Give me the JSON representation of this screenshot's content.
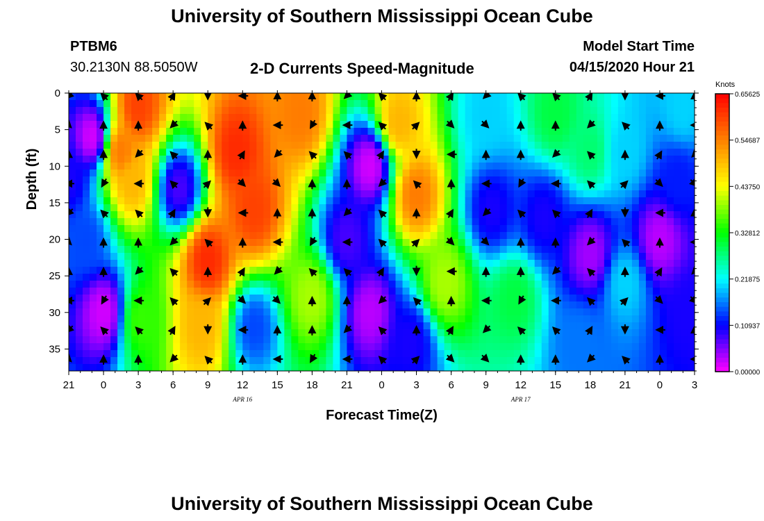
{
  "header": {
    "title": "University of Southern Mississippi Ocean Cube",
    "station_id": "PTBM6",
    "station_coords": "30.2130N 88.5050W",
    "plot_title": "2-D Currents Speed-Magnitude",
    "model_start_label": "Model Start Time",
    "model_start_value": "04/15/2020 Hour 21"
  },
  "footer": {
    "title": "University of Southern Mississippi Ocean Cube"
  },
  "chart_data": {
    "type": "heatmap",
    "title": "2-D Currents Speed-Magnitude",
    "xlabel": "Forecast Time(Z)",
    "ylabel": "Depth (ft)",
    "x_unit": "forecast hour from model start (04/15/2020 21Z)",
    "xlim": [
      0,
      54
    ],
    "ylim": [
      0,
      38
    ],
    "y_inverted": true,
    "x_ticks": [
      0,
      3,
      6,
      9,
      12,
      15,
      18,
      21,
      24,
      27,
      30,
      33,
      36,
      39,
      42,
      45,
      48,
      51,
      54
    ],
    "x_tick_labels": [
      "21",
      "0",
      "3",
      "6",
      "9",
      "12",
      "15",
      "18",
      "21",
      "0",
      "3",
      "6",
      "9",
      "12",
      "15",
      "18",
      "21",
      "0",
      "3"
    ],
    "y_ticks": [
      0,
      5,
      10,
      15,
      20,
      25,
      30,
      35
    ],
    "y_tick_labels": [
      "0",
      "5",
      "10",
      "15",
      "20",
      "25",
      "30",
      "35"
    ],
    "date_labels": [
      {
        "text": "APR 16",
        "hour": 15
      },
      {
        "text": "APR 17",
        "hour": 39
      }
    ],
    "colorbar": {
      "unit": "Knots",
      "min": 0.0,
      "max": 0.65625,
      "ticks": [
        0.65625,
        0.54687,
        0.4375,
        0.32812,
        0.21875,
        0.10937,
        0.0
      ],
      "tick_labels": [
        "0.65625",
        "0.54687",
        "0.43750",
        "0.32812",
        "0.21875",
        "0.10937",
        "0.00000"
      ],
      "colors": [
        "#ff00ff",
        "#0000ff",
        "#00ffff",
        "#00ff00",
        "#ffff00",
        "#ff8000",
        "#ff0000"
      ]
    },
    "speed_features": [
      {
        "t": 6,
        "d": 2,
        "v": 0.6
      },
      {
        "t": 4.5,
        "d": 8,
        "v": 0.55
      },
      {
        "t": 5.5,
        "d": 12,
        "v": 0.5
      },
      {
        "t": 2,
        "d": 6,
        "v": 0.02
      },
      {
        "t": 0,
        "d": 12,
        "v": 0.1
      },
      {
        "t": 1.5,
        "d": 20,
        "v": 0.14
      },
      {
        "t": 3,
        "d": 30,
        "v": 0.02
      },
      {
        "t": 6.3,
        "d": 31,
        "v": 0.35
      },
      {
        "t": 9.5,
        "d": 13,
        "v": 0.08
      },
      {
        "t": 14.5,
        "d": 8,
        "v": 0.62
      },
      {
        "t": 16,
        "d": 16,
        "v": 0.6
      },
      {
        "t": 12,
        "d": 23,
        "v": 0.62
      },
      {
        "t": 11.5,
        "d": 32,
        "v": 0.5
      },
      {
        "t": 16,
        "d": 32,
        "v": 0.14
      },
      {
        "t": 20,
        "d": 3,
        "v": 0.55
      },
      {
        "t": 21,
        "d": 28,
        "v": 0.4
      },
      {
        "t": 26,
        "d": 10,
        "v": 0.02
      },
      {
        "t": 26,
        "d": 30,
        "v": 0.03
      },
      {
        "t": 24,
        "d": 20,
        "v": 0.08
      },
      {
        "t": 28.5,
        "d": 4,
        "v": 0.5
      },
      {
        "t": 30,
        "d": 14,
        "v": 0.55
      },
      {
        "t": 32.5,
        "d": 26,
        "v": 0.4
      },
      {
        "t": 29.5,
        "d": 34,
        "v": 0.1
      },
      {
        "t": 36,
        "d": 3,
        "v": 0.2
      },
      {
        "t": 36.5,
        "d": 16,
        "v": 0.1
      },
      {
        "t": 38.5,
        "d": 28,
        "v": 0.3
      },
      {
        "t": 42,
        "d": 3,
        "v": 0.3
      },
      {
        "t": 45,
        "d": 8,
        "v": 0.28
      },
      {
        "t": 41,
        "d": 17,
        "v": 0.1
      },
      {
        "t": 45,
        "d": 22,
        "v": 0.04
      },
      {
        "t": 44,
        "d": 34,
        "v": 0.16
      },
      {
        "t": 48,
        "d": 26,
        "v": 0.2
      },
      {
        "t": 48,
        "d": 8,
        "v": 0.2
      },
      {
        "t": 51,
        "d": 20,
        "v": 0.03
      },
      {
        "t": 53,
        "d": 2,
        "v": 0.2
      },
      {
        "t": 52.5,
        "d": 12,
        "v": 0.12
      },
      {
        "t": 53.5,
        "d": 30,
        "v": 0.1
      }
    ],
    "vector_times": [
      0,
      3,
      6,
      9,
      12,
      15,
      18,
      21,
      24,
      27,
      30,
      33,
      36,
      39,
      42,
      45,
      48,
      51,
      54
    ],
    "vector_depths": [
      0,
      4,
      8,
      12,
      16,
      20,
      24,
      28,
      32,
      36
    ],
    "vector_directions_deg": [
      [
        225,
        90,
        135,
        225,
        180,
        135,
        225,
        270,
        225,
        315,
        210,
        270
      ],
      [
        270,
        315,
        270,
        135,
        225,
        270,
        225,
        315,
        270,
        315,
        210,
        270
      ],
      [
        315,
        300,
        315,
        45,
        0,
        0,
        0,
        0,
        0,
        30,
        0,
        0
      ],
      [
        330,
        45,
        0,
        30,
        0,
        0,
        0,
        0,
        0,
        270,
        315,
        30
      ]
    ]
  }
}
